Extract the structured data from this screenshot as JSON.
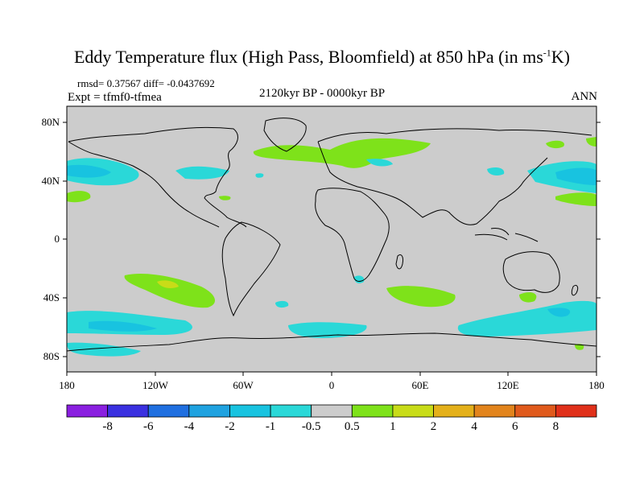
{
  "title": "Eddy Temperature flux (High Pass, Bloomfield) at 850 hPa (in ms",
  "title_sup": "-1",
  "title_end": "K)",
  "stats": "rmsd= 0.37567 diff= -0.0437692",
  "expt": "Expt = tfmf0-tfmea",
  "period": "2120kyr BP - 0000kyr BP",
  "season": "ANN",
  "lat_labels": [
    "80N",
    "40N",
    "0",
    "40S",
    "80S"
  ],
  "lon_labels": [
    "180",
    "120W",
    "60W",
    "0",
    "60E",
    "120E",
    "180"
  ],
  "colorbar": {
    "labels": [
      "-8",
      "-6",
      "-4",
      "-2",
      "-1",
      "-0.5",
      "0.5",
      "1",
      "2",
      "4",
      "6",
      "8"
    ],
    "colors": [
      "#8a1fe0",
      "#3a30e0",
      "#1f6fe0",
      "#1fa2e0",
      "#18c3e0",
      "#2ad8d8",
      "#cccccc",
      "#7ee21a",
      "#c8dc18",
      "#e4b01a",
      "#e2841c",
      "#e05a1c",
      "#e0301a"
    ]
  },
  "regions": {
    "north_pacific": "-1",
    "north_atlantic": "1",
    "south_pacific": "1",
    "southern_ocean": "-1"
  }
}
